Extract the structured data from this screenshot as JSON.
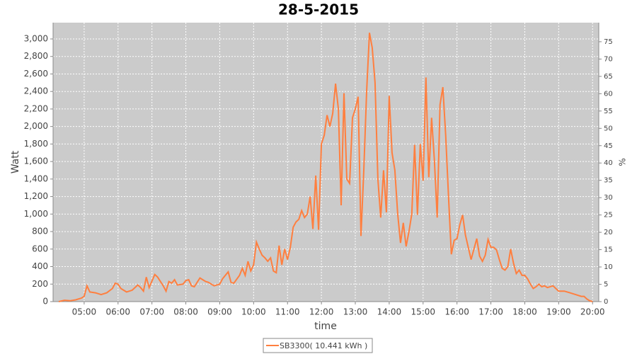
{
  "chart_data": {
    "type": "line",
    "title": "28-5-2015",
    "x_label": "time",
    "y_label": "Watt",
    "y2_label": "%",
    "x": [
      "04:15",
      "04:25",
      "04:35",
      "04:45",
      "04:55",
      "05:00",
      "05:05",
      "05:10",
      "05:20",
      "05:30",
      "05:40",
      "05:50",
      "05:55",
      "06:00",
      "06:05",
      "06:15",
      "06:25",
      "06:35",
      "06:40",
      "06:45",
      "06:50",
      "06:55",
      "07:05",
      "07:10",
      "07:20",
      "07:25",
      "07:30",
      "07:35",
      "07:40",
      "07:45",
      "07:55",
      "08:00",
      "08:05",
      "08:10",
      "08:15",
      "08:25",
      "08:30",
      "08:35",
      "08:40",
      "08:50",
      "09:00",
      "09:05",
      "09:10",
      "09:15",
      "09:20",
      "09:25",
      "09:35",
      "09:40",
      "09:45",
      "09:50",
      "09:55",
      "10:00",
      "10:05",
      "10:10",
      "10:15",
      "10:20",
      "10:25",
      "10:30",
      "10:35",
      "10:40",
      "10:45",
      "10:50",
      "10:55",
      "11:00",
      "11:05",
      "11:10",
      "11:15",
      "11:20",
      "11:25",
      "11:30",
      "11:35",
      "11:40",
      "11:45",
      "11:50",
      "11:55",
      "12:00",
      "12:05",
      "12:10",
      "12:15",
      "12:20",
      "12:25",
      "12:30",
      "12:35",
      "12:40",
      "12:45",
      "12:50",
      "12:55",
      "13:00",
      "13:05",
      "13:10",
      "13:15",
      "13:20",
      "13:25",
      "13:30",
      "13:35",
      "13:40",
      "13:45",
      "13:50",
      "13:55",
      "14:00",
      "14:05",
      "14:10",
      "14:15",
      "14:20",
      "14:25",
      "14:30",
      "14:35",
      "14:40",
      "14:45",
      "14:50",
      "14:55",
      "15:00",
      "15:05",
      "15:10",
      "15:15",
      "15:20",
      "15:25",
      "15:30",
      "15:35",
      "15:40",
      "15:45",
      "15:50",
      "15:55",
      "16:00",
      "16:05",
      "16:10",
      "16:15",
      "16:20",
      "16:25",
      "16:30",
      "16:35",
      "16:40",
      "16:45",
      "16:50",
      "16:55",
      "17:00",
      "17:05",
      "17:10",
      "17:15",
      "17:20",
      "17:25",
      "17:30",
      "17:35",
      "17:40",
      "17:45",
      "17:50",
      "17:55",
      "18:00",
      "18:05",
      "18:10",
      "18:15",
      "18:20",
      "18:25",
      "18:30",
      "18:35",
      "18:40",
      "18:50",
      "18:55",
      "19:00",
      "19:10",
      "19:20",
      "19:30",
      "19:40",
      "19:45",
      "19:50",
      "19:55",
      "20:00"
    ],
    "series": [
      {
        "name": "SB3300( 10.441 kWh )",
        "color": "#ff7f3f",
        "values": [
          0,
          15,
          10,
          20,
          40,
          60,
          180,
          110,
          100,
          80,
          100,
          150,
          210,
          200,
          150,
          110,
          130,
          190,
          160,
          120,
          280,
          160,
          310,
          280,
          180,
          120,
          230,
          210,
          250,
          190,
          200,
          240,
          250,
          180,
          170,
          270,
          250,
          230,
          220,
          180,
          200,
          260,
          300,
          340,
          220,
          210,
          300,
          380,
          300,
          460,
          350,
          420,
          680,
          600,
          530,
          500,
          460,
          500,
          350,
          330,
          640,
          420,
          600,
          480,
          620,
          850,
          910,
          940,
          1040,
          960,
          1000,
          1200,
          830,
          1440,
          820,
          1800,
          1900,
          2130,
          2000,
          2150,
          2490,
          2200,
          1100,
          2380,
          1400,
          1350,
          2100,
          2200,
          2340,
          750,
          1500,
          2400,
          3070,
          2900,
          2500,
          1400,
          960,
          1500,
          1020,
          2350,
          1700,
          1500,
          1000,
          670,
          900,
          630,
          800,
          1000,
          1790,
          990,
          1800,
          1380,
          2560,
          1420,
          2100,
          1620,
          960,
          2250,
          2450,
          1900,
          1200,
          540,
          700,
          720,
          880,
          990,
          760,
          620,
          480,
          600,
          720,
          520,
          460,
          530,
          710,
          620,
          620,
          590,
          480,
          380,
          360,
          400,
          600,
          440,
          320,
          360,
          300,
          300,
          260,
          200,
          150,
          170,
          200,
          170,
          180,
          160,
          180,
          150,
          120,
          120,
          100,
          80,
          60,
          60,
          30,
          10,
          0
        ]
      }
    ],
    "xlim": [
      "04:05",
      "20:11"
    ],
    "xticks": [
      "05:00",
      "06:00",
      "07:00",
      "08:00",
      "09:00",
      "10:00",
      "11:00",
      "12:00",
      "13:00",
      "14:00",
      "15:00",
      "16:00",
      "17:00",
      "18:00",
      "19:00",
      "20:00"
    ],
    "ylim": [
      0,
      3186
    ],
    "yticks": [
      0,
      200,
      400,
      600,
      800,
      {
        "value": 1000,
        "label": "1,000"
      },
      {
        "value": 1200,
        "label": "1,200"
      },
      {
        "value": 1400,
        "label": "1,400"
      },
      {
        "value": 1600,
        "label": "1,600"
      },
      {
        "value": 1800,
        "label": "1,800"
      },
      {
        "value": 2000,
        "label": "2,000"
      },
      {
        "value": 2200,
        "label": "2,200"
      },
      {
        "value": 2400,
        "label": "2,400"
      },
      {
        "value": 2600,
        "label": "2,600"
      },
      {
        "value": 2800,
        "label": "2,800"
      },
      {
        "value": 3000,
        "label": "3,000"
      }
    ],
    "y2lim": [
      0,
      80.5
    ],
    "y2ticks": [
      0,
      5,
      10,
      15,
      20,
      25,
      30,
      35,
      40,
      45,
      50,
      55,
      60,
      65,
      70,
      75
    ],
    "grid": true,
    "legend": "bottom",
    "background": "#cbcbcb"
  }
}
